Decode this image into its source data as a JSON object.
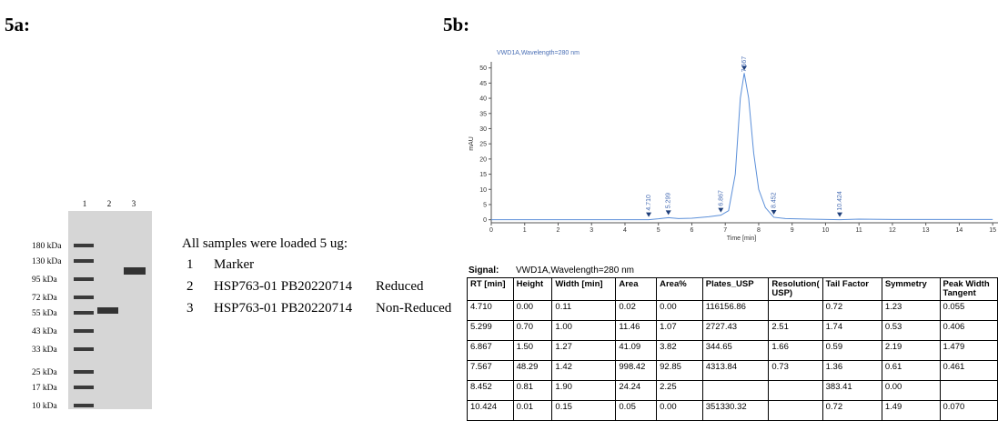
{
  "panels": {
    "a": "5a:",
    "b": "5b:"
  },
  "gel": {
    "lanes": [
      "1",
      "2",
      "3"
    ],
    "markers": [
      "180 kDa",
      "130 kDa",
      "95 kDa",
      "72 kDa",
      "55 kDa",
      "43 kDa",
      "33 kDa",
      "25 kDa",
      "17 kDa",
      "10 kDa"
    ]
  },
  "legend": {
    "title": "All samples were loaded 5 ug:",
    "rows": [
      [
        "1",
        "Marker",
        null
      ],
      [
        "2",
        "HSP763-01 PB20220714",
        "Reduced"
      ],
      [
        "3",
        "HSP763-01 PB20220714",
        "Non-Reduced"
      ]
    ]
  },
  "chart_data": {
    "type": "line",
    "title": "VWD1A,Wavelength=280 nm",
    "x_label": "Time [min]",
    "y_label": "mAU",
    "x": [
      0,
      4.5,
      4.71,
      5.0,
      5.299,
      5.6,
      6.0,
      6.5,
      6.867,
      7.1,
      7.3,
      7.45,
      7.567,
      7.7,
      7.85,
      8.0,
      8.2,
      8.452,
      8.8,
      9.5,
      10.424,
      11,
      12,
      13,
      15
    ],
    "series": [
      {
        "color": "#5b8fd9",
        "values": [
          0,
          0,
          0,
          0.3,
          0.7,
          0.4,
          0.5,
          1.0,
          1.5,
          3,
          15,
          40,
          48.29,
          40,
          22,
          10,
          4,
          0.81,
          0.4,
          0.2,
          0.01,
          0.2,
          0.1,
          0.1,
          0.1
        ]
      }
    ],
    "peaks": [
      {
        "value": 4.71,
        "label": "4.710",
        "height": 0
      },
      {
        "value": 5.299,
        "label": "5.299",
        "height": 0.7
      },
      {
        "value": 6.867,
        "label": "6.867",
        "height": 1.5
      },
      {
        "value": 7.567,
        "label": "7.567",
        "height": 48.29
      },
      {
        "value": 8.452,
        "label": "8.452",
        "height": 0.81
      },
      {
        "value": 10.424,
        "label": "10.424",
        "height": 0.01
      }
    ],
    "xlim": [
      0,
      15.05
    ],
    "ylim": [
      -1,
      52
    ],
    "xticks": [
      0,
      1,
      2,
      3,
      4,
      5,
      6,
      7,
      8,
      9,
      10,
      11,
      12,
      13,
      14,
      15
    ],
    "yticks": [
      0,
      5,
      10,
      15,
      20,
      25,
      30,
      35,
      40,
      45,
      50
    ],
    "grid": false
  },
  "table": {
    "signal_label": "Signal:",
    "signal": "VWD1A,Wavelength=280 nm",
    "header": [
      "RT [min]",
      "Height",
      "Width [min]",
      "Area",
      "Area%",
      "Plates_USP",
      "Resolution( USP)",
      "Tail Factor",
      "Symmetry",
      "Peak Width Tangent"
    ],
    "rows": [
      [
        "4.710",
        "0.00",
        "0.11",
        "0.02",
        "0.00",
        "116156.86",
        null,
        "0.72",
        "1.23",
        "0.055"
      ],
      [
        "5.299",
        "0.70",
        "1.00",
        "11.46",
        "1.07",
        "2727.43",
        "2.51",
        "1.74",
        "0.53",
        "0.406"
      ],
      [
        "6.867",
        "1.50",
        "1.27",
        "41.09",
        "3.82",
        "344.65",
        "1.66",
        "0.59",
        "2.19",
        "1.479"
      ],
      [
        "7.567",
        "48.29",
        "1.42",
        "998.42",
        "92.85",
        "4313.84",
        "0.73",
        "1.36",
        "0.61",
        "0.461"
      ],
      [
        "8.452",
        "0.81",
        "1.90",
        "24.24",
        "2.25",
        null,
        null,
        "383.41",
        "0.00",
        null
      ],
      [
        "10.424",
        "0.01",
        "0.15",
        "0.05",
        "0.00",
        "351330.32",
        null,
        "0.72",
        "1.49",
        "0.070"
      ]
    ]
  }
}
